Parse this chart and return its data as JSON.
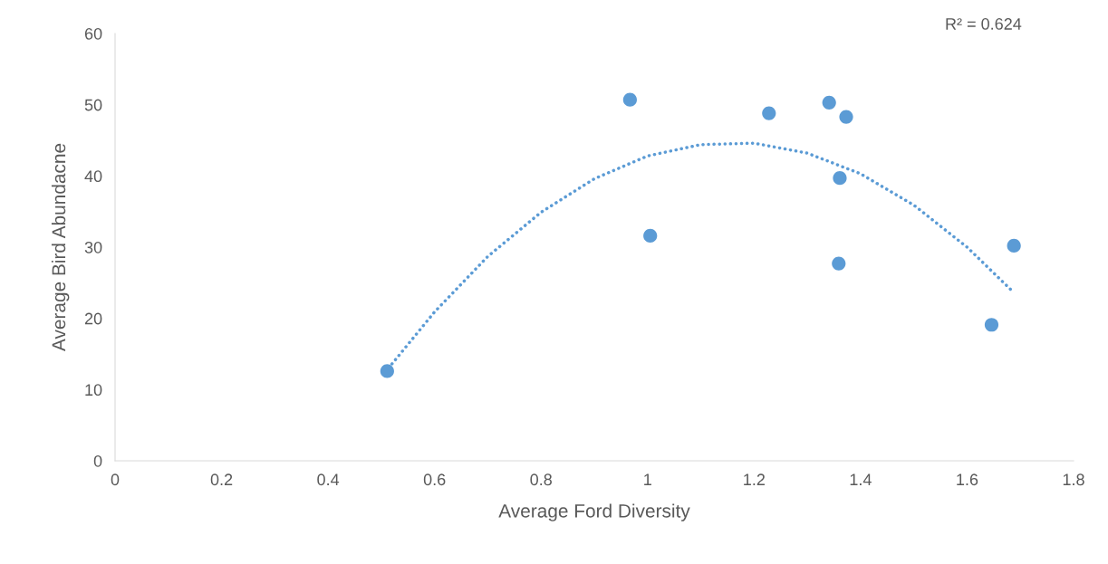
{
  "chart_data": {
    "type": "scatter",
    "xlabel": "Average Ford Diversity",
    "ylabel": "Average Bird Abundacne",
    "xlim": [
      0,
      1.8
    ],
    "xticks": [
      0,
      0.2,
      0.4,
      0.6,
      0.8,
      1,
      1.2,
      1.4,
      1.6,
      1.8
    ],
    "ylim": [
      0,
      60
    ],
    "yticks": [
      0,
      10,
      20,
      30,
      40,
      50,
      60
    ],
    "grid": false,
    "legend": false,
    "marker": "circle",
    "annotations": [
      "R² = 0.624"
    ],
    "series": [
      {
        "color": "#5b9bd5",
        "x": [
          0.511,
          0.967,
          1.005,
          1.228,
          1.341,
          1.373,
          1.361,
          1.359,
          1.646,
          1.688
        ],
        "values": [
          12.6,
          50.7,
          31.6,
          48.8,
          50.3,
          48.3,
          39.7,
          27.7,
          19.1,
          30.2
        ]
      },
      {
        "type": "line",
        "color": "#5b9bd5",
        "line_style": "dotted",
        "marker": "none",
        "x": [
          0.52,
          0.6,
          0.7,
          0.8,
          0.9,
          1.0,
          1.1,
          1.2,
          1.3,
          1.4,
          1.5,
          1.6,
          1.684
        ],
        "values": [
          13.6,
          20.9,
          28.7,
          34.9,
          39.6,
          42.8,
          44.4,
          44.6,
          43.2,
          40.3,
          35.9,
          30.0,
          23.9
        ]
      }
    ]
  }
}
